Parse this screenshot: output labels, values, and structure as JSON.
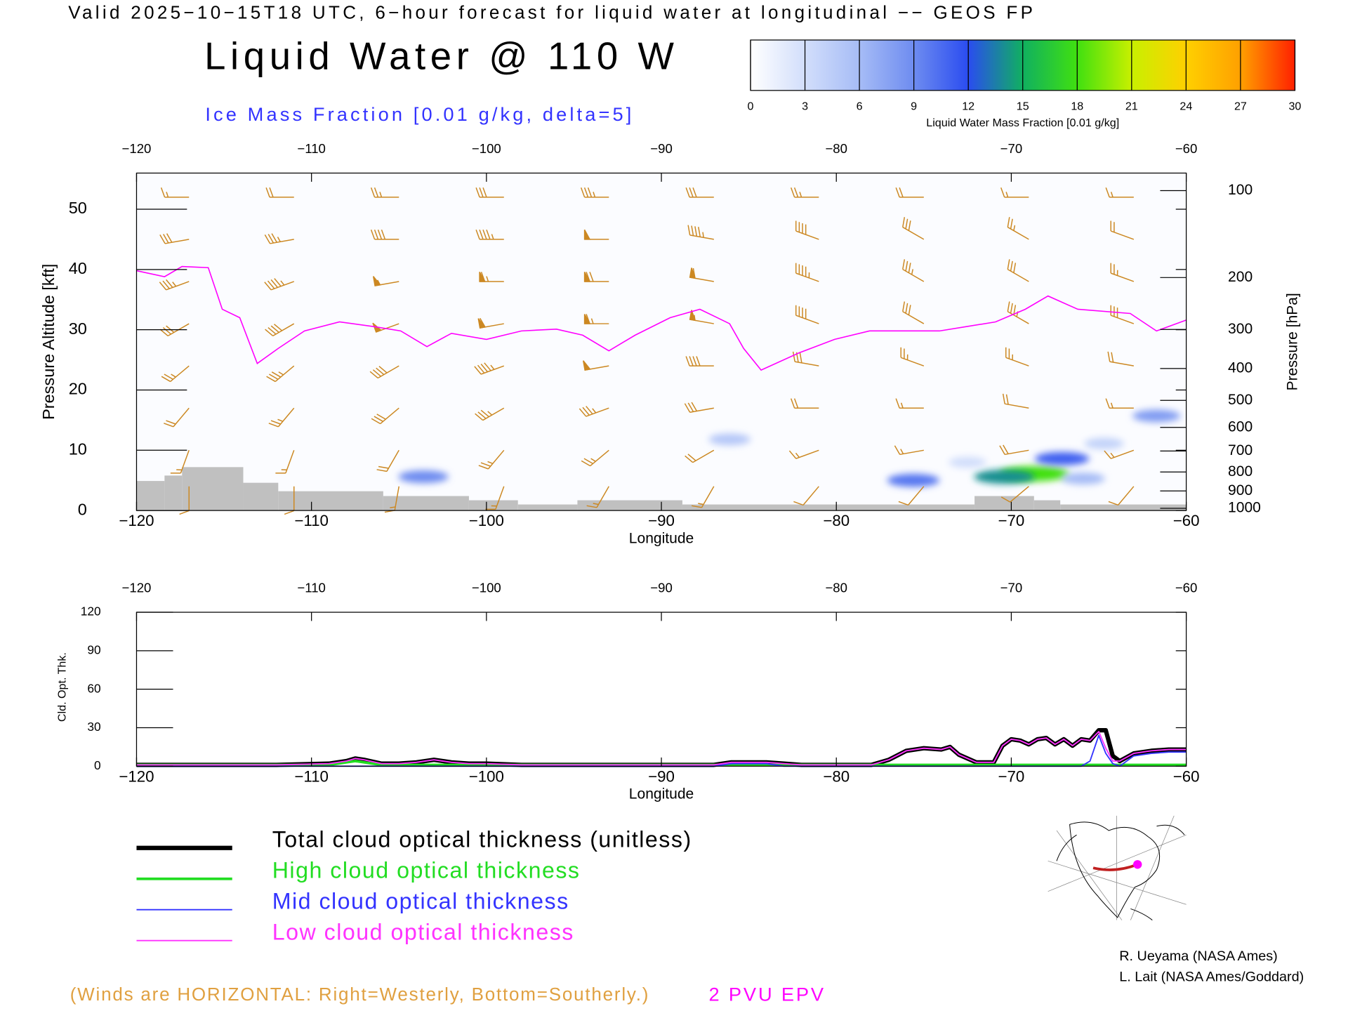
{
  "header": {
    "valid_line": "Valid 2025−10−15T18 UTC, 6−hour forecast for liquid water at longitudinal −− GEOS FP",
    "title": "Liquid Water @ 110 W",
    "subtitle": "Ice Mass Fraction [0.01 g/kg, delta=5]"
  },
  "colorbar": {
    "label": "Liquid Water Mass Fraction [0.01 g/kg]",
    "ticks": [
      0,
      3,
      6,
      9,
      12,
      15,
      18,
      21,
      24,
      27,
      30
    ],
    "colors": [
      "#ffffff",
      "#d2defb",
      "#a6bcf6",
      "#6e8cf0",
      "#2a4cf0",
      "#10b060",
      "#40e010",
      "#c8f000",
      "#ffd000",
      "#ffa000",
      "#ff2000"
    ]
  },
  "chart_data": [
    {
      "type": "cross-section",
      "x_label": "Longitude",
      "y_label": "Pressure Altitude [kft]",
      "y2_label": "Pressure [hPa]",
      "xlim": [
        -120,
        -60
      ],
      "ylim": [
        0,
        56
      ],
      "xticks": [
        {
          "value": -120,
          "label": "−120"
        },
        {
          "value": -110,
          "label": "−110"
        },
        {
          "value": -100,
          "label": "−100"
        },
        {
          "value": -90,
          "label": "−90"
        },
        {
          "value": -80,
          "label": "−80"
        },
        {
          "value": -70,
          "label": "−70"
        },
        {
          "value": -60,
          "label": "−60"
        }
      ],
      "yticks": [
        0,
        10,
        20,
        30,
        40,
        50
      ],
      "y2ticks": [
        100,
        200,
        300,
        400,
        500,
        600,
        700,
        800,
        900,
        1000
      ],
      "y2_scale": "standard-atmosphere-pressure",
      "terrain": {
        "color": "#c0c0c0",
        "bins": [
          -120,
          -118.4,
          -117.4,
          -113.9,
          -111.9,
          -105.9,
          -101.0,
          -98.2,
          -94.8,
          -88.8,
          -72.1,
          -68.7,
          -67.2,
          -60
        ],
        "values": [
          4.9,
          5.8,
          7.2,
          4.6,
          3.2,
          2.4,
          1.7,
          1.0,
          1.7,
          1.0,
          2.4,
          1.7,
          1.0
        ]
      },
      "epv": {
        "name": "2 PVU EPV",
        "color": "#ff00ff",
        "x": [
          -120,
          -118.4,
          -117.4,
          -115.9,
          -115.1,
          -114.1,
          -113.1,
          -111.9,
          -110.4,
          -108.4,
          -106.4,
          -104.9,
          -103.4,
          -102.0,
          -100.0,
          -98.0,
          -96.0,
          -94.5,
          -93.0,
          -91.5,
          -89.5,
          -87.8,
          -86.1,
          -85.3,
          -84.3,
          -82.1,
          -80.1,
          -78.1,
          -76.1,
          -74.1,
          -72.6,
          -70.9,
          -69.2,
          -67.9,
          -66.2,
          -63.2,
          -61.7,
          -60.0
        ],
        "values": [
          39.8,
          38.8,
          40.5,
          40.3,
          33.4,
          32.0,
          24.4,
          26.9,
          29.8,
          31.3,
          30.5,
          29.8,
          27.2,
          29.4,
          28.4,
          29.8,
          30.1,
          29.1,
          26.5,
          29.1,
          32.0,
          33.4,
          31.0,
          26.9,
          23.3,
          26.2,
          28.4,
          29.8,
          29.8,
          29.8,
          30.5,
          31.3,
          33.4,
          35.6,
          33.4,
          32.7,
          29.8,
          31.6
        ]
      },
      "liquid_water": {
        "lon": [
          -68.7,
          -70.4,
          -75.6,
          -67.1,
          -61.7,
          -103.6,
          -86.1,
          -64.7,
          -65.9,
          -72.5
        ],
        "alt": [
          6.1,
          5.6,
          5.0,
          8.6,
          15.7,
          5.6,
          11.8,
          11.1,
          5.3,
          8.0
        ],
        "values": [
          18,
          14,
          10,
          11,
          8,
          9,
          5,
          4,
          6,
          3
        ]
      },
      "winds": {
        "color": "#cc8822",
        "lon": [
          -117,
          -111,
          -105,
          -99,
          -93,
          -87,
          -81,
          -75,
          -69,
          -63
        ],
        "alt": [
          52,
          45,
          38,
          31,
          24,
          17,
          10,
          4
        ],
        "speed": [
          [
            15,
            20,
            25,
            30,
            35,
            30,
            25,
            20,
            15,
            15
          ],
          [
            30,
            35,
            40,
            45,
            50,
            45,
            40,
            30,
            25,
            20
          ],
          [
            35,
            45,
            55,
            65,
            70,
            60,
            45,
            35,
            30,
            25
          ],
          [
            30,
            40,
            50,
            60,
            65,
            55,
            40,
            30,
            35,
            30
          ],
          [
            25,
            35,
            40,
            45,
            50,
            40,
            30,
            25,
            25,
            20
          ],
          [
            20,
            25,
            30,
            35,
            35,
            30,
            20,
            15,
            20,
            15
          ],
          [
            15,
            15,
            20,
            25,
            25,
            20,
            15,
            15,
            20,
            15
          ],
          [
            10,
            10,
            15,
            15,
            15,
            15,
            10,
            10,
            10,
            10
          ]
        ],
        "dir": [
          [
            270,
            270,
            270,
            270,
            270,
            270,
            270,
            270,
            270,
            270
          ],
          [
            260,
            260,
            270,
            270,
            270,
            280,
            290,
            300,
            300,
            290
          ],
          [
            250,
            250,
            260,
            270,
            270,
            280,
            290,
            300,
            300,
            290
          ],
          [
            240,
            240,
            250,
            260,
            270,
            280,
            290,
            300,
            300,
            290
          ],
          [
            230,
            230,
            240,
            250,
            260,
            270,
            280,
            290,
            290,
            280
          ],
          [
            220,
            220,
            230,
            240,
            250,
            260,
            270,
            270,
            280,
            270
          ],
          [
            200,
            200,
            210,
            220,
            230,
            240,
            250,
            260,
            260,
            250
          ],
          [
            180,
            180,
            190,
            200,
            210,
            210,
            220,
            220,
            230,
            220
          ]
        ]
      }
    },
    {
      "type": "line",
      "x_label": "Longitude",
      "y_label": "Cld. Opt. Thk.",
      "xlim": [
        -120,
        -60
      ],
      "ylim": [
        0,
        120
      ],
      "xticks": [
        {
          "value": -120,
          "label": "−120"
        },
        {
          "value": -110,
          "label": "−110"
        },
        {
          "value": -100,
          "label": "−100"
        },
        {
          "value": -90,
          "label": "−90"
        },
        {
          "value": -80,
          "label": "−80"
        },
        {
          "value": -70,
          "label": "−70"
        },
        {
          "value": -60,
          "label": "−60"
        }
      ],
      "yticks": [
        0,
        30,
        60,
        90,
        120
      ],
      "x": [
        -120,
        -116,
        -112,
        -109,
        -108,
        -107.5,
        -107,
        -106,
        -105,
        -104,
        -103,
        -102,
        -101,
        -100,
        -98,
        -95,
        -92,
        -89,
        -87,
        -86,
        -85,
        -84,
        -83,
        -82,
        -80,
        -78,
        -77,
        -76,
        -75,
        -74,
        -73.5,
        -73,
        -72,
        -71,
        -70.5,
        -70,
        -69.5,
        -69,
        -68.5,
        -68,
        -67.5,
        -67,
        -66.5,
        -66,
        -65.5,
        -65,
        -64.6,
        -64.2,
        -63.8,
        -63,
        -62,
        -61,
        -60
      ],
      "series": [
        {
          "name": "Total cloud optical thickness (unitless)",
          "color": "#000000",
          "values": [
            1,
            1,
            1,
            2,
            4,
            6,
            5,
            2,
            2,
            3,
            5,
            3,
            2,
            2,
            1,
            1,
            1,
            1,
            1,
            3,
            3,
            3,
            2,
            1,
            1,
            1,
            5,
            12,
            14,
            13,
            15,
            9,
            3,
            3,
            16,
            21,
            20,
            17,
            21,
            22,
            17,
            21,
            16,
            21,
            20,
            28,
            28,
            8,
            4,
            10,
            12,
            13,
            13
          ]
        },
        {
          "name": "High cloud optical thickness",
          "color": "#22dd22",
          "values": [
            1,
            1,
            1,
            1,
            3,
            4,
            3,
            1,
            1,
            1,
            1,
            1,
            1,
            1,
            1,
            1,
            1,
            1,
            1,
            1,
            1,
            1,
            1,
            1,
            1,
            1,
            1,
            1,
            1,
            1,
            1,
            1,
            1,
            1,
            1,
            1,
            1,
            1,
            1,
            1,
            1,
            1,
            1,
            1,
            1,
            1,
            1,
            1,
            1,
            1,
            1,
            1,
            1
          ]
        },
        {
          "name": "Mid cloud optical thickness",
          "color": "#3333ff",
          "values": [
            0,
            0,
            0,
            0,
            0,
            0,
            0,
            0,
            0,
            0,
            0,
            0,
            0,
            0,
            0,
            0,
            0,
            0,
            0,
            2,
            2,
            2,
            0,
            0,
            0,
            0,
            0,
            0,
            0,
            0,
            0,
            0,
            0,
            0,
            0,
            0,
            0,
            0,
            0,
            0,
            0,
            0,
            0,
            0,
            4,
            24,
            10,
            2,
            0,
            8,
            10,
            11,
            11
          ]
        },
        {
          "name": "Low cloud optical thickness",
          "color": "#ff33ff",
          "values": [
            1,
            1,
            1,
            2,
            4,
            6,
            5,
            2,
            2,
            3,
            5,
            3,
            2,
            2,
            1,
            1,
            1,
            1,
            1,
            3,
            3,
            3,
            2,
            1,
            1,
            1,
            5,
            12,
            14,
            13,
            15,
            9,
            3,
            3,
            16,
            21,
            20,
            17,
            21,
            22,
            17,
            21,
            16,
            21,
            20,
            27,
            14,
            4,
            4,
            10,
            12,
            13,
            13
          ]
        }
      ]
    }
  ],
  "footer": {
    "winds_note": "(Winds are HORIZONTAL: Right=Westerly, Bottom=Southerly.)"
  },
  "credits": [
    "R. Ueyama (NASA Ames)",
    "L. Lait (NASA Ames/Goddard)"
  ]
}
